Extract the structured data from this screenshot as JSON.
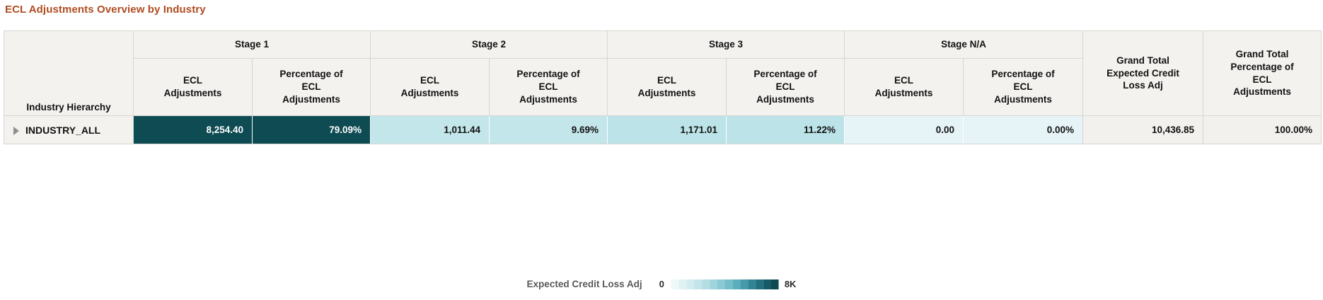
{
  "title": "ECL Adjustments Overview by Industry",
  "table": {
    "corner_header": "Industry Hierarchy",
    "groups": [
      {
        "label": "Stage 1"
      },
      {
        "label": "Stage 2"
      },
      {
        "label": "Stage 3"
      },
      {
        "label": "Stage N/A"
      }
    ],
    "sub_ecl_label": "ECL\nAdjustments",
    "sub_pct_label": "Percentage of\nECL\nAdjustments",
    "grand_total_headers": [
      "Grand Total\nExpected Credit\nLoss Adj",
      "Grand Total\nPercentage of\nECL\nAdjustments"
    ],
    "row": {
      "industry": "INDUSTRY_ALL",
      "cells": [
        {
          "value": "8,254.40",
          "style": "background:#0e4b53;color:#ffffff"
        },
        {
          "value": "79.09%",
          "style": "background:#0e4b53;color:#ffffff"
        },
        {
          "value": "1,011.44",
          "style": "background:#c3e6ea;color:#111111"
        },
        {
          "value": "9.69%",
          "style": "background:#c3e6ea;color:#111111"
        },
        {
          "value": "1,171.01",
          "style": "background:#bce3e8;color:#111111"
        },
        {
          "value": "11.22%",
          "style": "background:#bce3e8;color:#111111"
        },
        {
          "value": "0.00",
          "style": "background:#e6f4f7;color:#111111"
        },
        {
          "value": "0.00%",
          "style": "background:#e6f4f7;color:#111111"
        }
      ],
      "grand_total": [
        "10,436.85",
        "100.00%"
      ]
    }
  },
  "legend": {
    "label": "Expected Credit Loss Adj",
    "min_label": "0",
    "max_label": "8K",
    "gradient_colors": [
      "#eef8f9",
      "#e0f1f3",
      "#d2ebee",
      "#c3e4e9",
      "#b3dde3",
      "#a0d4dc",
      "#8bcad4",
      "#74bec9",
      "#5caebc",
      "#459aab",
      "#318595",
      "#226f7d",
      "#165a66",
      "#0d4a52"
    ]
  },
  "colors": {
    "title": "#b04b20",
    "header_bg": "#f3f2ef",
    "border": "#d7d5d1",
    "heat_dark": "#0e4b53",
    "heat_mid": "#c3e6ea",
    "heat_light": "#e6f4f7",
    "grand_total_bg": "#f2f1ee"
  },
  "chart_data": {
    "type": "table",
    "title": "ECL Adjustments Overview by Industry",
    "columns": [
      "Industry Hierarchy",
      "Stage 1 ECL Adjustments",
      "Stage 1 Percentage of ECL Adjustments",
      "Stage 2 ECL Adjustments",
      "Stage 2 Percentage of ECL Adjustments",
      "Stage 3 ECL Adjustments",
      "Stage 3 Percentage of ECL Adjustments",
      "Stage N/A ECL Adjustments",
      "Stage N/A Percentage of ECL Adjustments",
      "Grand Total Expected Credit Loss Adj",
      "Grand Total Percentage of ECL Adjustments"
    ],
    "rows": [
      [
        "INDUSTRY_ALL",
        8254.4,
        79.09,
        1011.44,
        9.69,
        1171.01,
        11.22,
        0.0,
        0.0,
        10436.85,
        100.0
      ]
    ],
    "heatmap_legend": {
      "measure": "Expected Credit Loss Adj",
      "min": 0,
      "max": 8000
    }
  }
}
